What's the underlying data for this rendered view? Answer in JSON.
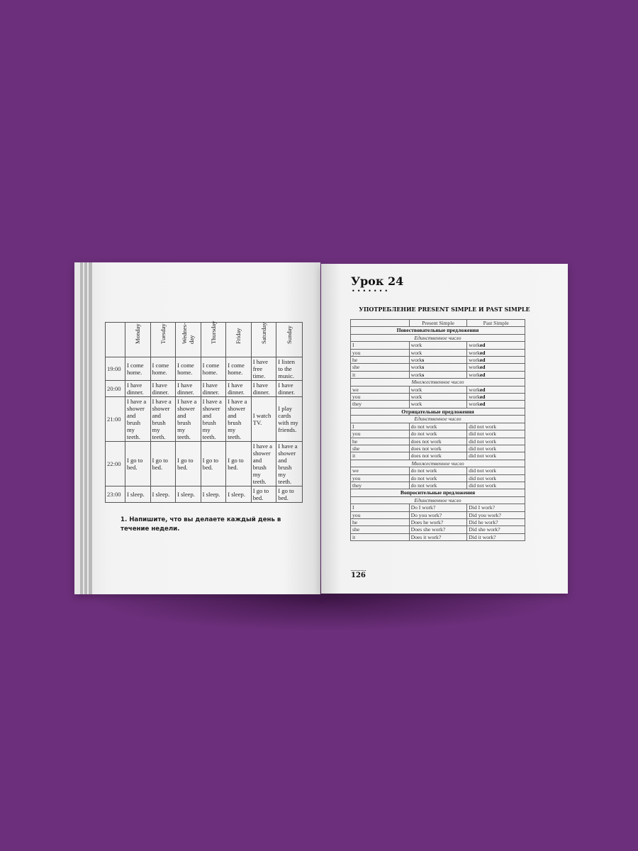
{
  "left_page": {
    "schedule": {
      "days": [
        "Monday",
        "Tuesday",
        "Wednes-\nday",
        "Thursday",
        "Friday",
        "Saturday",
        "Sunday"
      ],
      "rows": [
        {
          "time": "19:00",
          "cells": [
            "I come home.",
            "I come home.",
            "I come home.",
            "I come home.",
            "I come home.",
            "I have free time.",
            "I listen to the music."
          ]
        },
        {
          "time": "20:00",
          "cells": [
            "I have dinner.",
            "I have dinner.",
            "I have dinner.",
            "I have dinner.",
            "I have dinner.",
            "I have dinner.",
            "I have dinner."
          ]
        },
        {
          "time": "21:00",
          "cells": [
            "I have a shower and brush my teeth.",
            "I have a shower and brush my teeth.",
            "I have a shower and brush my teeth.",
            "I have a shower and brush my teeth.",
            "I have a shower and brush my teeth.",
            "I watch TV.",
            "I play cards with my friends."
          ]
        },
        {
          "time": "22:00",
          "cells": [
            "I go to bed.",
            "I go to bed.",
            "I go to bed.",
            "I go to bed.",
            "I go to bed.",
            "I have a shower and brush my teeth.",
            "I have a shower and brush my teeth."
          ]
        },
        {
          "time": "23:00",
          "cells": [
            "I sleep.",
            "I sleep.",
            "I sleep.",
            "I sleep.",
            "I sleep.",
            "I go to bed.",
            "I go to bed."
          ]
        }
      ]
    },
    "exercise": "1. Напишите, что вы делаете каждый день в течение недели."
  },
  "right_page": {
    "lesson_title": "Урок 24",
    "dots": "•••••••",
    "heading": "УПОТРЕБЛЕНИЕ PRESENT SIMPLE И PAST SIMPLE",
    "columns": [
      "",
      "Present Simple",
      "Past Simple"
    ],
    "sections": [
      {
        "title": "Повествовательные предложения",
        "groups": [
          {
            "label": "Единственное число",
            "rows": [
              [
                "I",
                "work",
                "",
                "work",
                "ed"
              ],
              [
                "you",
                "work",
                "",
                "work",
                "ed"
              ],
              [
                "he",
                "work",
                "s",
                "work",
                "ed"
              ],
              [
                "she",
                "work",
                "s",
                "work",
                "ed"
              ],
              [
                "it",
                "work",
                "s",
                "work",
                "ed"
              ]
            ]
          },
          {
            "label": "Множественное число",
            "rows": [
              [
                "we",
                "work",
                "",
                "work",
                "ed"
              ],
              [
                "you",
                "work",
                "",
                "work",
                "ed"
              ],
              [
                "they",
                "work",
                "",
                "work",
                "ed"
              ]
            ]
          }
        ]
      },
      {
        "title": "Отрицательные предложения",
        "groups": [
          {
            "label": "Единственное число",
            "rows": [
              [
                "I",
                "do not work",
                "",
                "did not work",
                ""
              ],
              [
                "you",
                "do not work",
                "",
                "did not work",
                ""
              ],
              [
                "he",
                "does not work",
                "",
                "did not work",
                ""
              ],
              [
                "she",
                "does not work",
                "",
                "did not work",
                ""
              ],
              [
                "it",
                "does not work",
                "",
                "did not work",
                ""
              ]
            ]
          },
          {
            "label": "Множественное число",
            "rows": [
              [
                "we",
                "do not work",
                "",
                "did not work",
                ""
              ],
              [
                "you",
                "do not work",
                "",
                "did not work",
                ""
              ],
              [
                "they",
                "do not work",
                "",
                "did not work",
                ""
              ]
            ]
          }
        ]
      },
      {
        "title": "Вопросительные предложения",
        "groups": [
          {
            "label": "Единственное число",
            "rows": [
              [
                "I",
                "Do I work?",
                "",
                "Did I work?",
                ""
              ],
              [
                "you",
                "Do you work?",
                "",
                "Did you work?",
                ""
              ],
              [
                "he",
                "Does he work?",
                "",
                "Did he work?",
                ""
              ],
              [
                "she",
                "Does she work?",
                "",
                "Did she work?",
                ""
              ],
              [
                "it",
                "Does it work?",
                "",
                "Did it work?",
                ""
              ]
            ]
          }
        ]
      }
    ],
    "page_number": "126"
  },
  "colors": {
    "background": "#6c2f7b",
    "page": "#f3f3f3",
    "stripe": "#b9b9b9"
  }
}
